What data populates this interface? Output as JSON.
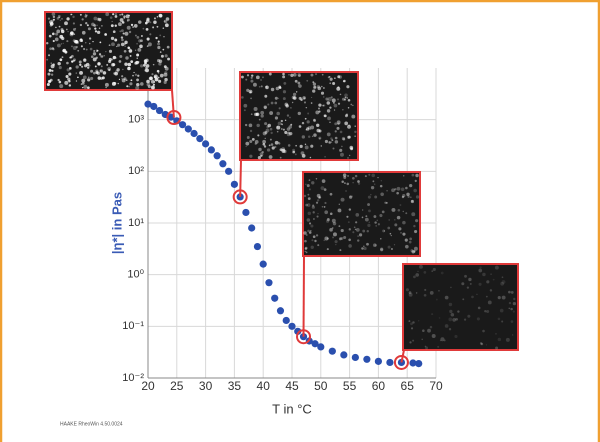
{
  "chart_data": {
    "type": "scatter",
    "x_label": "T in °C",
    "y_label": "|η*| in Pas",
    "footnote": "HAAKE RheoWin 4.50.0024",
    "log_y": true,
    "grid": true,
    "xlim": [
      20,
      70
    ],
    "xticks": [
      20,
      25,
      30,
      35,
      40,
      45,
      50,
      55,
      60,
      65,
      70
    ],
    "ylim": [
      0.01,
      10000
    ],
    "yticks": [
      {
        "value": 0.01,
        "label": "10⁻²"
      },
      {
        "value": 0.1,
        "label": "10⁻¹"
      },
      {
        "value": 1,
        "label": "10⁰"
      },
      {
        "value": 10,
        "label": "10¹"
      },
      {
        "value": 100,
        "label": "10²"
      },
      {
        "value": 1000,
        "label": "10³"
      }
    ],
    "series": [
      {
        "color": "#2a4fae",
        "x": [
          20,
          21,
          22,
          23,
          24,
          25,
          26,
          27,
          28,
          29,
          30,
          31,
          32,
          33,
          34,
          35,
          36,
          37,
          38,
          39,
          40,
          41,
          42,
          43,
          44,
          45,
          46,
          47,
          48,
          49,
          50,
          52,
          54,
          56,
          58,
          60,
          62,
          64,
          66,
          67
        ],
        "values": [
          2000,
          1800,
          1500,
          1260,
          1120,
          950,
          800,
          660,
          540,
          430,
          340,
          260,
          200,
          140,
          100,
          56,
          32,
          16,
          8,
          3.5,
          1.6,
          0.7,
          0.35,
          0.2,
          0.13,
          0.1,
          0.08,
          0.063,
          0.052,
          0.046,
          0.04,
          0.033,
          0.028,
          0.025,
          0.023,
          0.021,
          0.02,
          0.02,
          0.0195,
          0.019
        ]
      }
    ],
    "highlights": {
      "color": "#e03a3a",
      "x": [
        24.5,
        36,
        47,
        64
      ],
      "values": [
        1100,
        32,
        0.063,
        0.02
      ]
    }
  }
}
